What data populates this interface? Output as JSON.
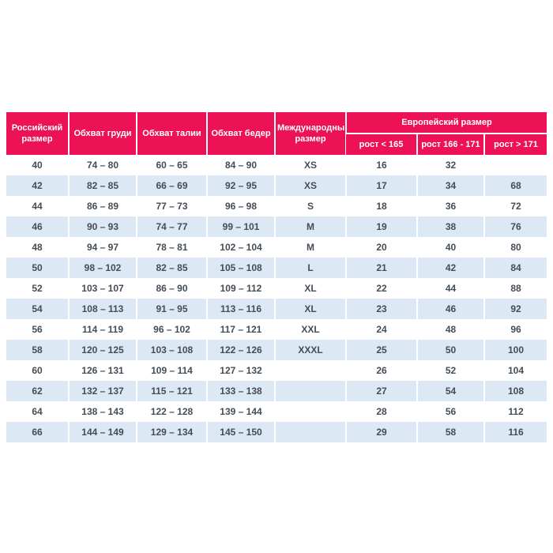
{
  "colors": {
    "header_bg": "#ed1155",
    "header_text": "#ffffff",
    "stripe_bg": "#dce8f4",
    "body_text": "#444d56",
    "page_bg": "#ffffff"
  },
  "chart_data": {
    "type": "table",
    "columns": [
      "Российский размер",
      "Обхват груди",
      "Обхват талии",
      "Обхват бедер",
      "Международный размер"
    ],
    "column_group": {
      "label": "Европейский размер",
      "subcolumns": [
        "рост < 165",
        "рост 166 - 171",
        "рост > 171"
      ]
    },
    "rows": [
      [
        "40",
        "74 – 80",
        "60 – 65",
        "84 – 90",
        "XS",
        "16",
        "32",
        ""
      ],
      [
        "42",
        "82 – 85",
        "66 – 69",
        "92 – 95",
        "XS",
        "17",
        "34",
        "68"
      ],
      [
        "44",
        "86 – 89",
        "77 – 73",
        "96 – 98",
        "S",
        "18",
        "36",
        "72"
      ],
      [
        "46",
        "90 – 93",
        "74 – 77",
        "99 – 101",
        "M",
        "19",
        "38",
        "76"
      ],
      [
        "48",
        "94 – 97",
        "78 – 81",
        "102 – 104",
        "M",
        "20",
        "40",
        "80"
      ],
      [
        "50",
        "98 – 102",
        "82 – 85",
        "105 – 108",
        "L",
        "21",
        "42",
        "84"
      ],
      [
        "52",
        "103 – 107",
        "86 – 90",
        "109 – 112",
        "XL",
        "22",
        "44",
        "88"
      ],
      [
        "54",
        "108 – 113",
        "91 – 95",
        "113 – 116",
        "XL",
        "23",
        "46",
        "92"
      ],
      [
        "56",
        "114 – 119",
        "96 – 102",
        "117 – 121",
        "XXL",
        "24",
        "48",
        "96"
      ],
      [
        "58",
        "120 – 125",
        "103 – 108",
        "122 – 126",
        "XXXL",
        "25",
        "50",
        "100"
      ],
      [
        "60",
        "126 – 131",
        "109 – 114",
        "127 – 132",
        "",
        "26",
        "52",
        "104"
      ],
      [
        "62",
        "132 – 137",
        "115 – 121",
        "133 – 138",
        "",
        "27",
        "54",
        "108"
      ],
      [
        "64",
        "138 – 143",
        "122 – 128",
        "139 – 144",
        "",
        "28",
        "56",
        "112"
      ],
      [
        "66",
        "144 – 149",
        "129 – 134",
        "145 – 150",
        "",
        "29",
        "58",
        "116"
      ]
    ]
  }
}
